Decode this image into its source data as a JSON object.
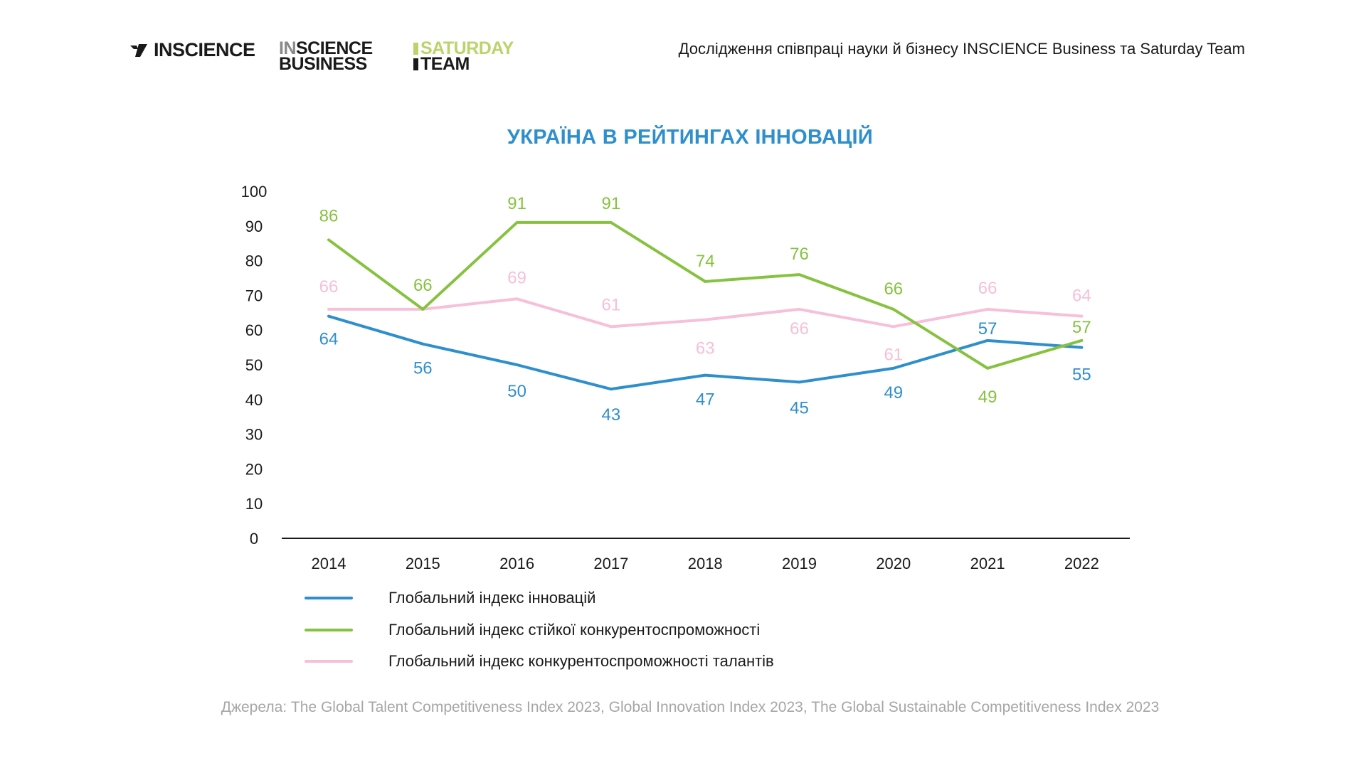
{
  "header": {
    "logo_inscience": "INSCIENCE",
    "logo_isb_in": "IN",
    "logo_isb_rest": "SCIENCE",
    "logo_isb_line2": "BUSINESS",
    "logo_sat_line1": "SATURDAY",
    "logo_sat_line2": "TEAM",
    "caption": "Дослідження співпраці науки й бізнесу INSCIENCE Business та Saturday Team"
  },
  "colors": {
    "blue": "#2e8fcc",
    "green": "#86c23f",
    "pink": "#f5c0d8",
    "axis": "#1a1a1a",
    "logo_yellow": "#b9d46a"
  },
  "chart_data": {
    "type": "line",
    "title": "УКРАЇНА В РЕЙТИНГАХ ІННОВАЦІЙ",
    "x": [
      "2014",
      "2015",
      "2016",
      "2017",
      "2018",
      "2019",
      "2020",
      "2021",
      "2022"
    ],
    "ylim": [
      0,
      100
    ],
    "yticks": [
      "0",
      "10",
      "20",
      "30",
      "40",
      "50",
      "60",
      "70",
      "80",
      "90",
      "100"
    ],
    "grid": false,
    "legend_position": "bottom-left",
    "series": [
      {
        "name": "Глобальний індекс інновацій",
        "color": "#2e8fcc",
        "values": [
          64,
          56,
          50,
          43,
          47,
          45,
          49,
          57,
          55
        ],
        "labels": [
          "64",
          "56",
          "50",
          "43",
          "47",
          "45",
          "49",
          "57",
          "55"
        ]
      },
      {
        "name": "Глобальний індекс стійкої конкурентоспроможності",
        "color": "#86c23f",
        "values": [
          86,
          66,
          91,
          91,
          74,
          76,
          66,
          49,
          57
        ],
        "labels": [
          "86",
          "66",
          "91",
          "91",
          "74",
          "76",
          "66",
          "49",
          "57"
        ]
      },
      {
        "name": "Глобальний індекс конкурентоспроможності талантів",
        "color": "#f5c0d8",
        "values": [
          66,
          66,
          69,
          61,
          63,
          66,
          61,
          66,
          64
        ],
        "labels": [
          "66",
          "",
          "69",
          "61",
          "63",
          "66",
          "61",
          "66",
          "64"
        ]
      }
    ]
  },
  "sources": "Джерела: The Global Talent Competitiveness Index 2023, Global Innovation Index 2023, The Global Sustainable Competitiveness Index 2023"
}
